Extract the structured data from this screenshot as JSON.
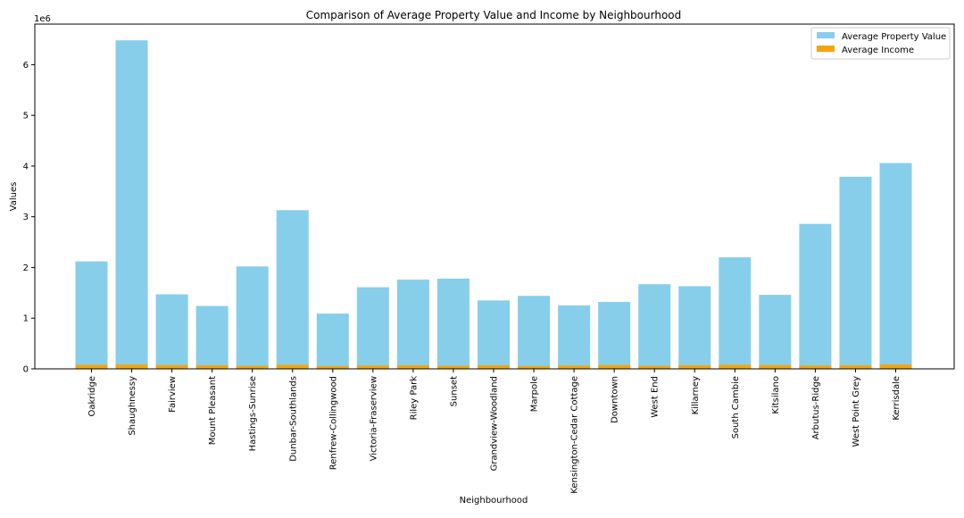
{
  "chart_data": {
    "type": "bar",
    "title": "Comparison of Average Property Value and Income by Neighbourhood",
    "xlabel": "Neighbourhood",
    "ylabel": "Values",
    "y_offset_label": "1e6",
    "ylim": [
      0,
      6800000
    ],
    "y_ticks": [
      0,
      1000000,
      2000000,
      3000000,
      4000000,
      5000000,
      6000000
    ],
    "y_tick_labels": [
      "0",
      "1",
      "2",
      "3",
      "4",
      "5",
      "6"
    ],
    "grid": false,
    "legend_position": "top-right",
    "categories": [
      "Oakridge",
      "Shaughnessy",
      "Fairview",
      "Mount Pleasant",
      "Hastings-Sunrise",
      "Dunbar-Southlands",
      "Renfrew-Collingwood",
      "Victoria-Fraserview",
      "Riley Park",
      "Sunset",
      "Grandview-Woodland",
      "Marpole",
      "Kensington-Cedar Cottage",
      "Downtown",
      "West End",
      "Killarney",
      "South Cambie",
      "Kitsilano",
      "Arbutus-Ridge",
      "West Point Grey",
      "Kerrisdale"
    ],
    "series": [
      {
        "name": "Average Property Value",
        "color": "#87ceeb",
        "values": [
          2120000,
          6480000,
          1470000,
          1240000,
          2020000,
          3130000,
          1090000,
          1610000,
          1760000,
          1780000,
          1350000,
          1440000,
          1250000,
          1320000,
          1670000,
          1630000,
          2200000,
          1460000,
          2860000,
          3790000,
          4060000
        ]
      },
      {
        "name": "Average Income",
        "color": "#f4a50e",
        "values": [
          80000,
          85000,
          75000,
          70000,
          60000,
          80000,
          55000,
          65000,
          70000,
          60000,
          70000,
          55000,
          65000,
          75000,
          60000,
          70000,
          80000,
          75000,
          65000,
          70000,
          85000
        ]
      }
    ]
  }
}
